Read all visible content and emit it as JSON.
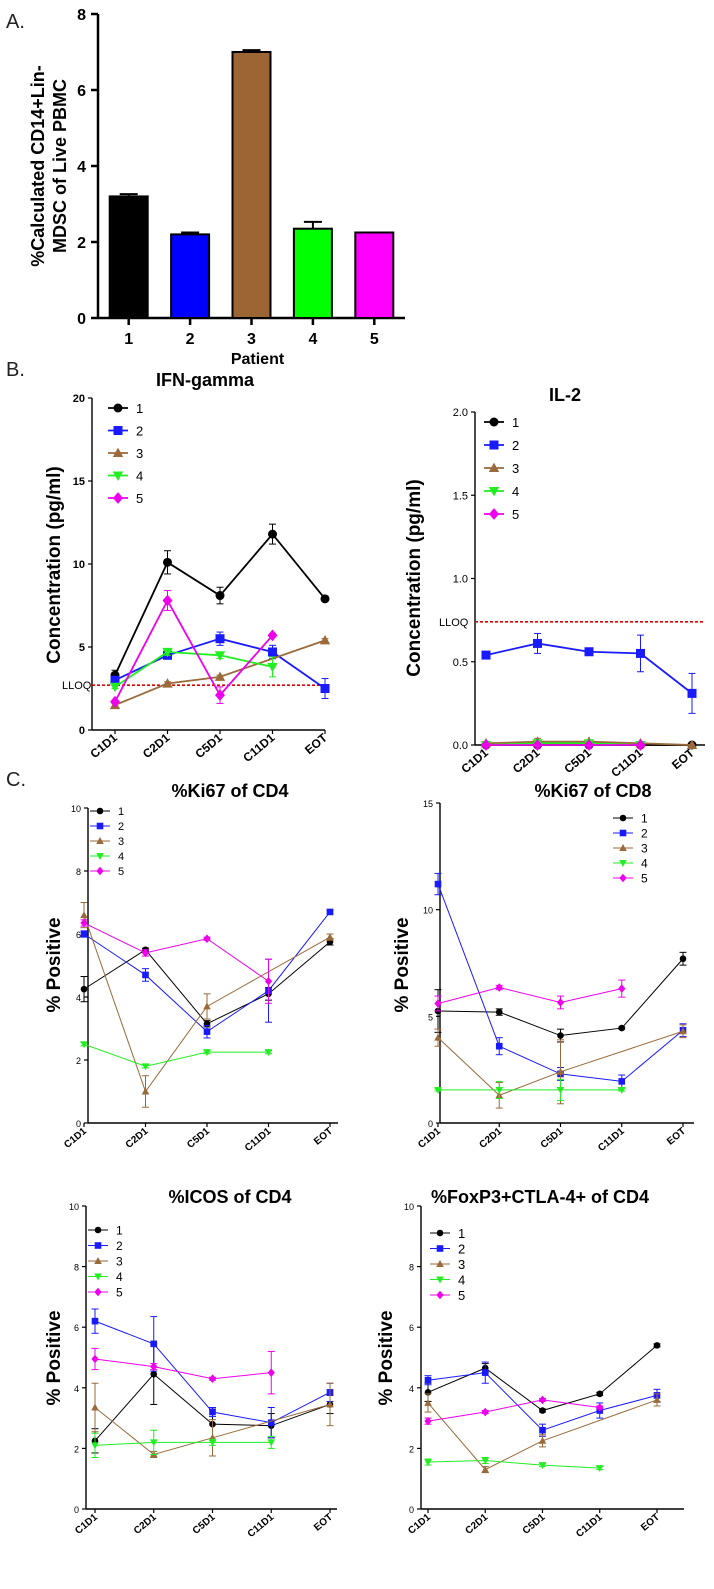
{
  "colors": {
    "s1": "#000000",
    "s2": "#1a1aff",
    "s3": "#9a6a3a",
    "s4": "#22ee22",
    "s5": "#ee00ee",
    "bar1": "#000000",
    "bar2": "#0000ff",
    "bar3": "#9b6534",
    "bar4": "#00ff00",
    "bar5": "#ff00ff",
    "lloq": "#dd0000"
  },
  "panel_labels": {
    "a": "A.",
    "b": "B.",
    "c": "C."
  },
  "chart_data": [
    {
      "id": "mdsc",
      "type": "bar",
      "title": "",
      "categories": [
        "1",
        "2",
        "3",
        "4",
        "5"
      ],
      "values": [
        3.2,
        2.2,
        7.0,
        2.35,
        2.25
      ],
      "errors": [
        0.06,
        0.05,
        0.05,
        0.18,
        0.0
      ],
      "xlabel": "Patient",
      "ylabel": "%Calculated CD14+Lin-MDSC of Live PBMC",
      "ylabel_lines": [
        "%Calculated CD14+Lin-",
        "MDSC of Live PBMC"
      ],
      "ylim": [
        0,
        8
      ],
      "yticks": [
        "0",
        "2",
        "4",
        "6",
        "8"
      ]
    },
    {
      "id": "ifng",
      "type": "line",
      "title": "IFN-gamma",
      "categories": [
        "C1D1",
        "C2D1",
        "C5D1",
        "C11D1",
        "EOT"
      ],
      "ylabel": "Concentration (pg/ml)",
      "ylim": [
        0,
        20
      ],
      "yticks": [
        "0",
        "5",
        "10",
        "15",
        "20"
      ],
      "lloq": {
        "label": "LLOQ",
        "value": 2.7
      },
      "series": [
        {
          "name": "1",
          "values": [
            3.3,
            10.1,
            8.1,
            11.8,
            7.9
          ],
          "errors": [
            0.3,
            0.7,
            0.5,
            0.6,
            0.1
          ]
        },
        {
          "name": "2",
          "values": [
            3.0,
            4.5,
            5.5,
            4.7,
            2.5
          ],
          "errors": [
            0.2,
            0.2,
            0.4,
            0.4,
            0.6
          ]
        },
        {
          "name": "3",
          "values": [
            1.5,
            2.8,
            3.2,
            null,
            5.4
          ],
          "errors": [
            0.1,
            0.1,
            0.1,
            0,
            0.1
          ]
        },
        {
          "name": "4",
          "values": [
            2.6,
            4.7,
            4.5,
            3.8,
            null
          ],
          "errors": [
            0.1,
            0.2,
            0.2,
            0.6,
            0
          ]
        },
        {
          "name": "5",
          "values": [
            1.7,
            7.8,
            2.1,
            5.7,
            null
          ],
          "errors": [
            0.1,
            0.6,
            0.5,
            0.1,
            0
          ]
        }
      ]
    },
    {
      "id": "il2",
      "type": "line",
      "title": "IL-2",
      "categories": [
        "C1D1",
        "C2D1",
        "C5D1",
        "C11D1",
        "EOT"
      ],
      "ylabel": "Concentration (pg/ml)",
      "ylim": [
        0,
        2
      ],
      "yticks": [
        "0.0",
        "0.5",
        "1.0",
        "1.5",
        "2.0"
      ],
      "lloq": {
        "label": "LLOQ",
        "value": 0.74
      },
      "series": [
        {
          "name": "1",
          "values": [
            0.0,
            0.0,
            0.0,
            0.0,
            0.0
          ],
          "errors": [
            0,
            0,
            0,
            0,
            0
          ]
        },
        {
          "name": "2",
          "values": [
            0.54,
            0.61,
            0.56,
            0.55,
            0.31
          ],
          "errors": [
            0.02,
            0.06,
            0.02,
            0.11,
            0.12
          ]
        },
        {
          "name": "3",
          "values": [
            0.01,
            0.02,
            0.02,
            0.01,
            0.0
          ],
          "errors": [
            0,
            0.02,
            0.01,
            0.01,
            0
          ]
        },
        {
          "name": "4",
          "values": [
            0.0,
            0.01,
            0.01,
            0.0,
            null
          ],
          "errors": [
            0,
            0,
            0,
            0,
            0
          ]
        },
        {
          "name": "5",
          "values": [
            0.0,
            0.0,
            0.0,
            0.0,
            null
          ],
          "errors": [
            0,
            0,
            0,
            0,
            0
          ]
        }
      ]
    },
    {
      "id": "ki67cd4",
      "type": "line",
      "title": "%Ki67 of CD4",
      "categories": [
        "C1D1",
        "C2D1",
        "C5D1",
        "C11D1",
        "EOT"
      ],
      "ylabel": "% Positive",
      "ylim": [
        0,
        10
      ],
      "yticks": [
        "0",
        "2",
        "4",
        "6",
        "8",
        "10"
      ],
      "series": [
        {
          "name": "1",
          "values": [
            4.25,
            5.5,
            3.15,
            4.1,
            5.75
          ],
          "errors": [
            0.4,
            0.05,
            0.1,
            0.2,
            0.1
          ]
        },
        {
          "name": "2",
          "values": [
            6.0,
            4.7,
            2.9,
            4.2,
            6.7
          ],
          "errors": [
            0.1,
            0.2,
            0.2,
            1.0,
            0.05
          ]
        },
        {
          "name": "3",
          "values": [
            6.6,
            1.0,
            3.7,
            null,
            5.9
          ],
          "errors": [
            0.4,
            0.5,
            0.4,
            0,
            0.1
          ]
        },
        {
          "name": "4",
          "values": [
            2.5,
            1.8,
            2.25,
            2.25,
            null
          ],
          "errors": [
            0.05,
            0.05,
            0.05,
            0.05,
            0
          ]
        },
        {
          "name": "5",
          "values": [
            6.35,
            5.4,
            5.85,
            4.5,
            null
          ],
          "errors": [
            0.1,
            0.1,
            0.05,
            0.7,
            0
          ]
        }
      ]
    },
    {
      "id": "ki67cd8",
      "type": "line",
      "title": "%Ki67 of CD8",
      "categories": [
        "C1D1",
        "C2D1",
        "C5D1",
        "C11D1",
        "EOT"
      ],
      "ylabel": "% Positive",
      "ylim": [
        0,
        15
      ],
      "yticks": [
        "0",
        "5",
        "10",
        "15"
      ],
      "legend_pos": "right",
      "series": [
        {
          "name": "1",
          "values": [
            5.25,
            5.2,
            4.1,
            4.45,
            7.7
          ],
          "errors": [
            1.0,
            0.15,
            0.3,
            0.05,
            0.3
          ]
        },
        {
          "name": "2",
          "values": [
            11.2,
            3.6,
            2.3,
            1.95,
            4.35
          ],
          "errors": [
            0.5,
            0.4,
            0.3,
            0.3,
            0.3
          ]
        },
        {
          "name": "3",
          "values": [
            4.0,
            1.3,
            2.4,
            null,
            4.3
          ],
          "errors": [
            0.4,
            0.6,
            1.5,
            0,
            0.3
          ]
        },
        {
          "name": "4",
          "values": [
            1.55,
            1.55,
            1.55,
            1.55,
            null
          ],
          "errors": [
            0.05,
            0.4,
            0.5,
            0.05,
            0
          ]
        },
        {
          "name": "5",
          "values": [
            5.6,
            6.35,
            5.65,
            6.3,
            null
          ],
          "errors": [
            0.35,
            0.1,
            0.3,
            0.4,
            0
          ]
        }
      ]
    },
    {
      "id": "icoscd4",
      "type": "line",
      "title": "%ICOS of CD4",
      "categories": [
        "C1D1",
        "C2D1",
        "C5D1",
        "C11D1",
        "EOT"
      ],
      "ylabel": "% Positive",
      "ylim": [
        0,
        10
      ],
      "yticks": [
        "0",
        "2",
        "4",
        "6",
        "8",
        "10"
      ],
      "series": [
        {
          "name": "1",
          "values": [
            2.25,
            4.45,
            2.8,
            2.75,
            3.45
          ],
          "errors": [
            0.4,
            1.0,
            0.5,
            0.4,
            0.3
          ]
        },
        {
          "name": "2",
          "values": [
            6.2,
            5.45,
            3.2,
            2.85,
            3.85
          ],
          "errors": [
            0.4,
            0.9,
            0.15,
            0.5,
            0.3
          ]
        },
        {
          "name": "3",
          "values": [
            3.35,
            1.8,
            2.35,
            null,
            3.45
          ],
          "errors": [
            0.8,
            0.1,
            0.6,
            0,
            0.7
          ]
        },
        {
          "name": "4",
          "values": [
            2.1,
            2.2,
            2.2,
            2.2,
            null
          ],
          "errors": [
            0.4,
            0.4,
            0.1,
            0.2,
            0
          ]
        },
        {
          "name": "5",
          "values": [
            4.95,
            4.7,
            4.3,
            4.5,
            null
          ],
          "errors": [
            0.35,
            0.1,
            0.05,
            0.7,
            0
          ]
        }
      ]
    },
    {
      "id": "foxp3",
      "type": "line",
      "title": "%FoxP3+CTLA-4+ of CD4",
      "categories": [
        "C1D1",
        "C2D1",
        "C5D1",
        "C11D1",
        "EOT"
      ],
      "ylabel": "% Positive",
      "ylim": [
        0,
        10
      ],
      "yticks": [
        "0",
        "2",
        "4",
        "6",
        "8",
        "10"
      ],
      "series": [
        {
          "name": "1",
          "values": [
            3.85,
            4.65,
            3.25,
            3.8,
            5.4
          ],
          "errors": [
            0.3,
            0.15,
            0.05,
            0.05,
            0.05
          ]
        },
        {
          "name": "2",
          "values": [
            4.25,
            4.5,
            2.6,
            3.25,
            3.75
          ],
          "errors": [
            0.15,
            0.35,
            0.2,
            0.25,
            0.2
          ]
        },
        {
          "name": "3",
          "values": [
            3.5,
            1.3,
            2.25,
            null,
            3.6
          ],
          "errors": [
            0.3,
            0.1,
            0.2,
            0,
            0.2
          ]
        },
        {
          "name": "4",
          "values": [
            1.55,
            1.6,
            1.45,
            1.35,
            null
          ],
          "errors": [
            0.1,
            0.1,
            0.05,
            0.05,
            0
          ]
        },
        {
          "name": "5",
          "values": [
            2.9,
            3.2,
            3.6,
            3.35,
            null
          ],
          "errors": [
            0.1,
            0.05,
            0.05,
            0.05,
            0
          ]
        }
      ]
    }
  ]
}
